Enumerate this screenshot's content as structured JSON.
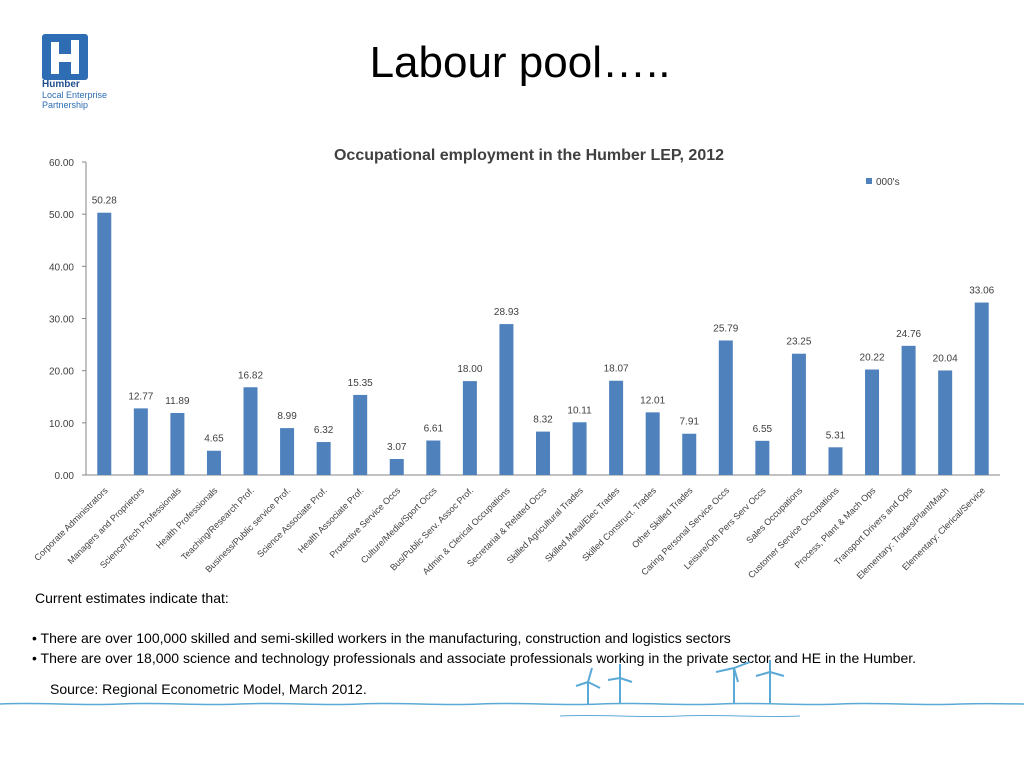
{
  "slide": {
    "title": "Labour pool…..",
    "logo": {
      "line1": "Humber",
      "line2": "Local Enterprise",
      "line3": "Partnership"
    }
  },
  "chart_data": {
    "type": "bar",
    "title": "Occupational employment in the Humber LEP, 2012",
    "xlabel": "",
    "ylabel": "",
    "ylim": [
      0,
      60
    ],
    "yticks": [
      "0.00",
      "10.00",
      "20.00",
      "30.00",
      "40.00",
      "50.00",
      "60.00"
    ],
    "legend": {
      "placement": "top-right"
    },
    "grid": false,
    "categories": [
      "Corporate Administrators",
      "Managers and Proprietors",
      "Science/Tech Professionals",
      "Health Professionals",
      "Teaching/Research Prof.",
      "Business/Public service Prof.",
      "Science Associate Prof.",
      "Health Associate Prof.",
      "Protective Service Occs",
      "Culture/Media/Sport Occs",
      "Bus/Public Serv. Assoc Prof.",
      "Admin & Clerical Occupations",
      "Secretarial & Related Occs",
      "Skilled Agricultural Trades",
      "Skilled Metal/Elec Trades",
      "Skilled Construct. Trades",
      "Other Skilled Trades",
      "Caring Personal Service Occs",
      "Leisure/Oth Pers Serv Occs",
      "Sales Occupations",
      "Customer Service Occupations",
      "Process, Plant & Mach Ops",
      "Transport Drivers and Ops",
      "Elementary: Trades/Plant/Mach",
      "Elementary: Clerical/Service"
    ],
    "series": [
      {
        "name": "000's",
        "color": "#4f81bd",
        "values": [
          50.28,
          12.77,
          11.89,
          4.65,
          16.82,
          8.99,
          6.32,
          15.35,
          3.07,
          6.61,
          18.0,
          28.93,
          8.32,
          10.11,
          18.07,
          12.01,
          7.91,
          25.79,
          6.55,
          23.25,
          5.31,
          20.22,
          24.76,
          20.04,
          33.06
        ],
        "labels": [
          "50.28",
          "12.77",
          "11.89",
          "4.65",
          "16.82",
          "8.99",
          "6.32",
          "15.35",
          "3.07",
          "6.61",
          "18.00",
          "28.93",
          "8.32",
          "10.11",
          "18.07",
          "12.01",
          "7.91",
          "25.79",
          "6.55",
          "23.25",
          "5.31",
          "20.22",
          "24.76",
          "20.04",
          "33.06"
        ]
      }
    ]
  },
  "notes": {
    "intro": "Current estimates indicate that:",
    "bullets": [
      "• There are over 100,000 skilled and semi-skilled workers in the manufacturing, construction and logistics sectors",
      "• There are over 18,000 science and technology professionals and associate professionals working in the private sector and HE in the Humber."
    ],
    "source": "Source: Regional Econometric Model, March 2012."
  },
  "colors": {
    "bar": "#4f81bd",
    "axis": "#868686",
    "deco": "#5aa9d6",
    "brand": "#2e6db4"
  }
}
